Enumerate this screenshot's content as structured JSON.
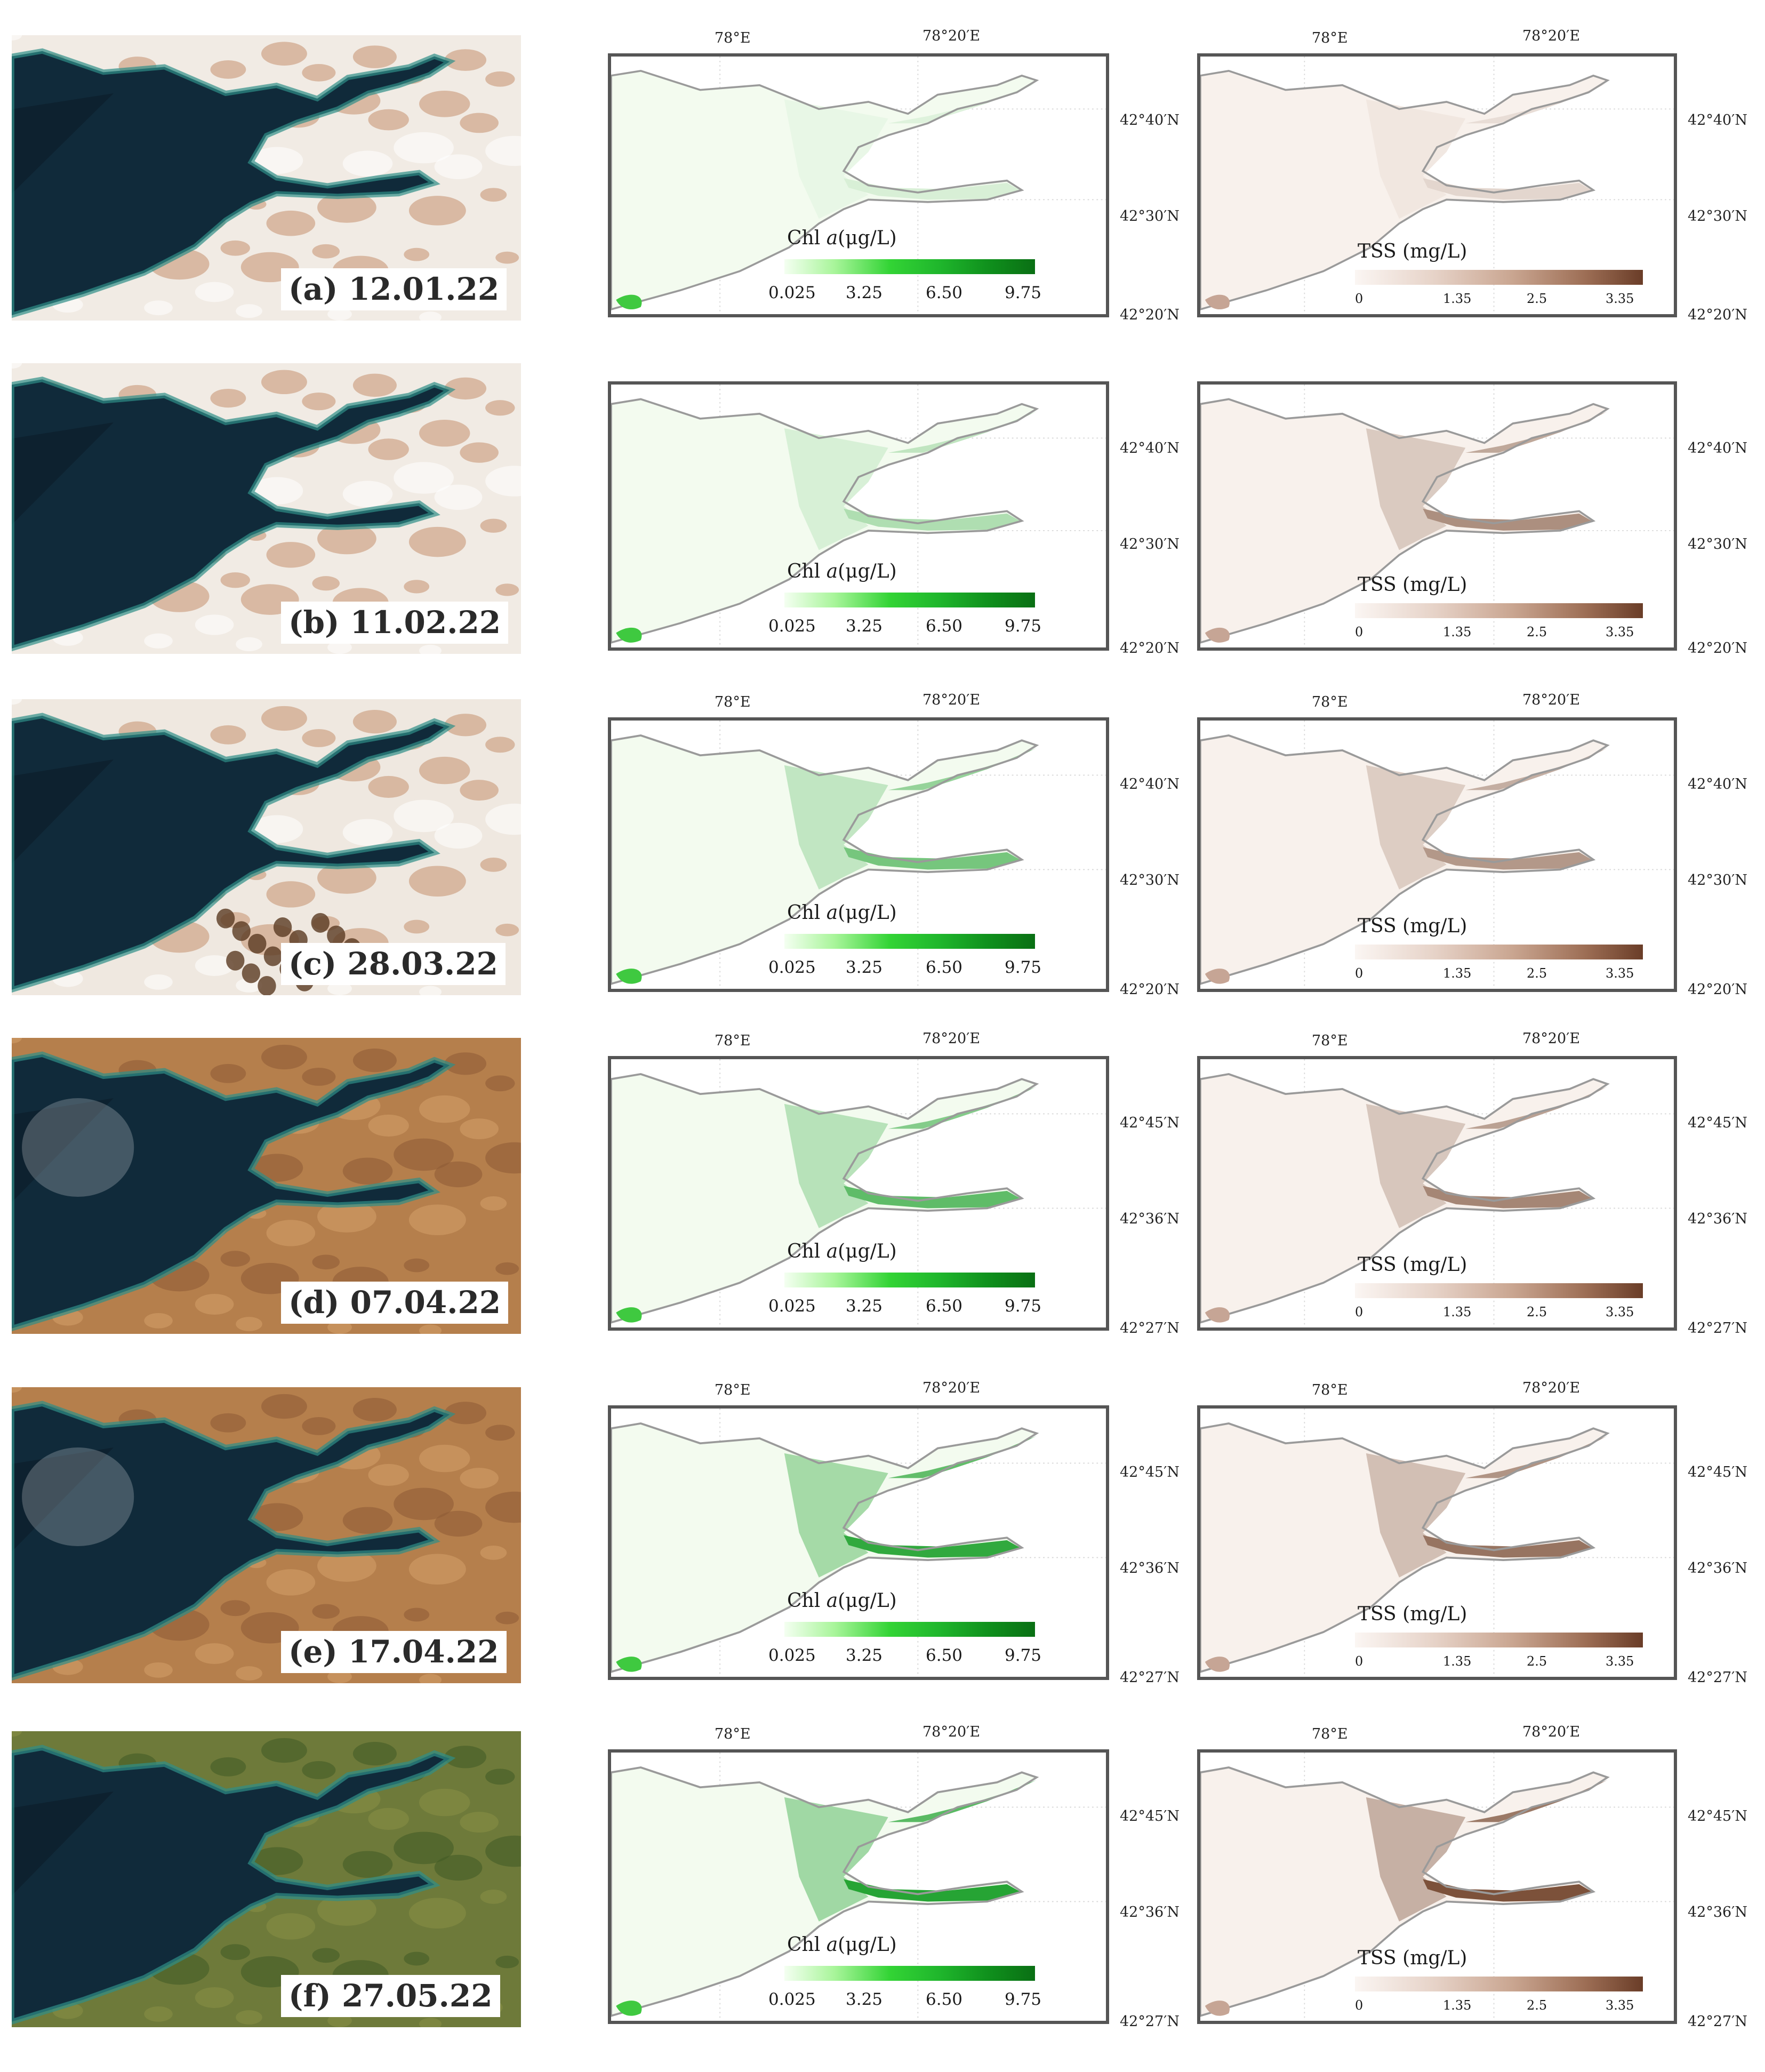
{
  "colors": {
    "chl_accent": "#1fb62c",
    "tss_accent": "#8a5a40",
    "frame": "#555555"
  },
  "legends": {
    "chl": {
      "title_prefix": "Chl ",
      "title_var": "a",
      "title_unit": "(μg/L)",
      "ticks": [
        "0.025",
        "3.25",
        "6.50",
        "9.75"
      ]
    },
    "tss": {
      "title": "TSS  (mg/L)",
      "ticks": [
        "0",
        "1.35",
        "2.5",
        "3.35"
      ]
    }
  },
  "panels": [
    {
      "date_label": "(a) 12.01.22",
      "season": "winter",
      "lon_labels": [
        "78°E",
        "78°20′E"
      ],
      "chl_lat": [
        "42°40′N",
        "42°30′N",
        "42°20′N"
      ],
      "tss_lat": [
        "42°40′N",
        "42°30′N",
        "42°20′N"
      ],
      "chl_intensity": 0.12,
      "tss_intensity": 0.15
    },
    {
      "date_label": "(b) 11.02.22",
      "season": "winter",
      "lon_labels": [],
      "chl_lat": [
        "42°40′N",
        "42°30′N",
        "42°20′N"
      ],
      "tss_lat": [
        "42°40′N",
        "42°30′N",
        "42°20′N"
      ],
      "chl_intensity": 0.3,
      "tss_intensity": 0.55
    },
    {
      "date_label": "(c) 28.03.22",
      "season": "snow-melt",
      "lon_labels": [
        "78°E",
        "78°20′E"
      ],
      "chl_lat": [
        "42°40′N",
        "42°30′N",
        "42°20′N"
      ],
      "tss_lat": [
        "42°40′N",
        "42°30′N",
        "42°20′N"
      ],
      "chl_intensity": 0.55,
      "tss_intensity": 0.5
    },
    {
      "date_label": "(d) 07.04.22",
      "season": "spring",
      "lon_labels": [
        "78°E",
        "78°20′E"
      ],
      "chl_lat": [
        "42°45′N",
        "42°36′N",
        "42°27′N"
      ],
      "tss_lat": [
        "42°45′N",
        "42°36′N",
        "42°27′N"
      ],
      "chl_intensity": 0.65,
      "tss_intensity": 0.6
    },
    {
      "date_label": "(e) 17.04.22",
      "season": "spring",
      "lon_labels": [
        "78°E",
        "78°20′E"
      ],
      "chl_lat": [
        "42°45′N",
        "42°36′N",
        "42°27′N"
      ],
      "tss_lat": [
        "42°45′N",
        "42°36′N",
        "42°27′N"
      ],
      "chl_intensity": 0.85,
      "tss_intensity": 0.7
    },
    {
      "date_label": "(f) 27.05.22",
      "season": "summer",
      "lon_labels": [
        "78°E",
        "78°20′E"
      ],
      "chl_lat": [
        "42°45′N",
        "42°36′N",
        "42°27′N"
      ],
      "tss_lat": [
        "42°45′N",
        "42°36′N",
        "42°27′N"
      ],
      "chl_intensity": 0.9,
      "tss_intensity": 0.9
    }
  ]
}
